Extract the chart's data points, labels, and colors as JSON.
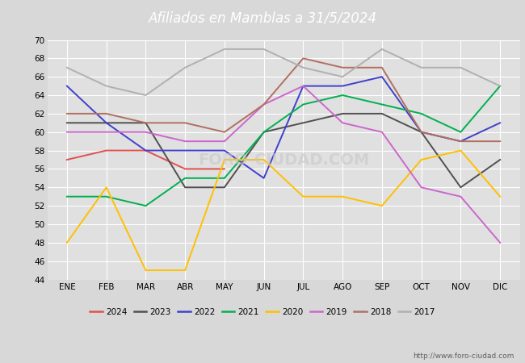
{
  "title": "Afiliados en Mamblas a 31/5/2024",
  "title_color": "white",
  "title_bg": "#5b8dd9",
  "months": [
    "ENE",
    "FEB",
    "MAR",
    "ABR",
    "MAY",
    "JUN",
    "JUL",
    "AGO",
    "SEP",
    "OCT",
    "NOV",
    "DIC"
  ],
  "ylim": [
    44,
    70
  ],
  "yticks": [
    44,
    46,
    48,
    50,
    52,
    54,
    56,
    58,
    60,
    62,
    64,
    66,
    68,
    70
  ],
  "series": {
    "2024": {
      "color": "#e05050",
      "data": [
        57,
        58,
        58,
        56,
        56,
        null,
        null,
        null,
        null,
        null,
        null,
        null
      ]
    },
    "2023": {
      "color": "#505050",
      "data": [
        61,
        61,
        61,
        54,
        54,
        60,
        61,
        62,
        62,
        60,
        54,
        57
      ]
    },
    "2022": {
      "color": "#4040cc",
      "data": [
        65,
        61,
        58,
        58,
        58,
        55,
        65,
        65,
        66,
        60,
        59,
        61
      ]
    },
    "2021": {
      "color": "#00b050",
      "data": [
        53,
        53,
        52,
        55,
        55,
        60,
        63,
        64,
        63,
        62,
        60,
        65
      ]
    },
    "2020": {
      "color": "#ffc000",
      "data": [
        48,
        54,
        45,
        45,
        57,
        57,
        53,
        53,
        52,
        57,
        58,
        53
      ]
    },
    "2019": {
      "color": "#cc66cc",
      "data": [
        60,
        60,
        60,
        59,
        59,
        63,
        65,
        61,
        60,
        54,
        53,
        48
      ]
    },
    "2018": {
      "color": "#b07060",
      "data": [
        62,
        62,
        61,
        61,
        60,
        63,
        68,
        67,
        67,
        60,
        59,
        59
      ]
    },
    "2017": {
      "color": "#b0b0b0",
      "data": [
        67,
        65,
        64,
        67,
        69,
        69,
        67,
        66,
        69,
        67,
        67,
        65
      ]
    }
  },
  "legend_order": [
    "2024",
    "2023",
    "2022",
    "2021",
    "2020",
    "2019",
    "2018",
    "2017"
  ],
  "watermark": "http://www.foro-ciudad.com",
  "outer_bg": "#d8d8d8",
  "plot_bg": "#e0e0e0",
  "grid_color": "white"
}
